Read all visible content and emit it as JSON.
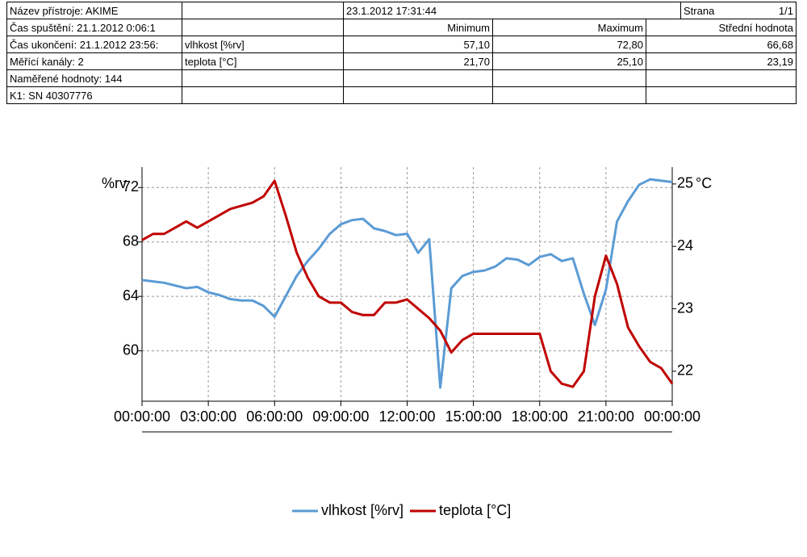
{
  "table": {
    "rows": [
      [
        "Název přístroje: AKIME",
        "23.1.2012 17:31:44",
        "Strana",
        "1/1"
      ],
      [
        "Čas spuštění: 21.1.2012 0:06:1",
        "Minimum",
        "Maximum",
        "Střední hodnota"
      ],
      [
        "Čas ukončení: 21.1.2012 23:56:",
        "vlhkost [%rv]",
        "57,10",
        "72,80",
        "66,68"
      ],
      [
        "Měřící kanály: 2",
        "teplota [°C]",
        "21,70",
        "25,10",
        "23,19"
      ],
      [
        "Naměřené hodnoty: 144"
      ],
      [
        "K1: SN 40307776"
      ]
    ]
  },
  "chart_data": {
    "type": "line",
    "y_label": "%rv",
    "y2_label": "°C",
    "x": [
      0,
      0.5,
      1,
      1.5,
      2,
      2.5,
      3,
      3.5,
      4,
      4.5,
      5,
      5.5,
      6,
      6.5,
      7,
      7.5,
      8,
      8.5,
      9,
      9.5,
      10,
      10.5,
      11,
      11.5,
      12,
      12.5,
      13,
      13.5,
      14,
      14.5,
      15,
      15.5,
      16,
      16.5,
      17,
      17.5,
      18,
      18.5,
      19,
      19.5,
      20,
      20.5,
      21,
      21.5,
      22,
      22.5,
      23,
      23.5,
      24
    ],
    "xlim": [
      0,
      24
    ],
    "xticks": [
      {
        "value": 0,
        "label": "00:00:00"
      },
      {
        "value": 3,
        "label": "03:00:00"
      },
      {
        "value": 6,
        "label": "06:00:00"
      },
      {
        "value": 9,
        "label": "09:00:00"
      },
      {
        "value": 12,
        "label": "12:00:00"
      },
      {
        "value": 15,
        "label": "15:00:00"
      },
      {
        "value": 18,
        "label": "18:00:00"
      },
      {
        "value": 21,
        "label": "21:00:00"
      },
      {
        "value": 24,
        "label": "00:00:00"
      }
    ],
    "ylim": [
      56.3,
      73.5
    ],
    "yticks": [
      60,
      64,
      68,
      72
    ],
    "y2lim": [
      21.52,
      25.27
    ],
    "y2ticks": [
      22,
      23,
      24,
      25
    ],
    "grid": true,
    "series": [
      {
        "name": "vlhkost [%rv]",
        "color": "#5b9bd5",
        "values": [
          65.2,
          65.1,
          65.0,
          64.8,
          64.6,
          64.7,
          64.3,
          64.1,
          63.8,
          63.7,
          63.7,
          63.3,
          62.5,
          64.0,
          65.5,
          66.6,
          67.5,
          68.6,
          69.3,
          69.6,
          69.7,
          69.0,
          68.8,
          68.5,
          68.6,
          67.2,
          68.2,
          57.3,
          64.6,
          65.5,
          65.8,
          65.9,
          66.2,
          66.8,
          66.7,
          66.3,
          66.9,
          67.1,
          66.6,
          66.8,
          64.2,
          61.9,
          64.5,
          69.5,
          71.0,
          72.2,
          72.6,
          72.5,
          72.4
        ]
      },
      {
        "name": "teplota [°C]",
        "color": "#c00000",
        "axis": "y2",
        "values": [
          24.1,
          24.2,
          24.2,
          24.3,
          24.4,
          24.3,
          24.4,
          24.5,
          24.6,
          24.65,
          24.7,
          24.8,
          25.05,
          24.5,
          23.9,
          23.5,
          23.2,
          23.1,
          23.1,
          22.95,
          22.9,
          22.9,
          23.1,
          23.1,
          23.15,
          23.0,
          22.85,
          22.65,
          22.3,
          22.5,
          22.6,
          22.6,
          22.6,
          22.6,
          22.6,
          22.6,
          22.6,
          22.0,
          21.8,
          21.75,
          22.0,
          23.2,
          23.85,
          23.4,
          22.7,
          22.4,
          22.15,
          22.05,
          21.8
        ]
      }
    ]
  }
}
